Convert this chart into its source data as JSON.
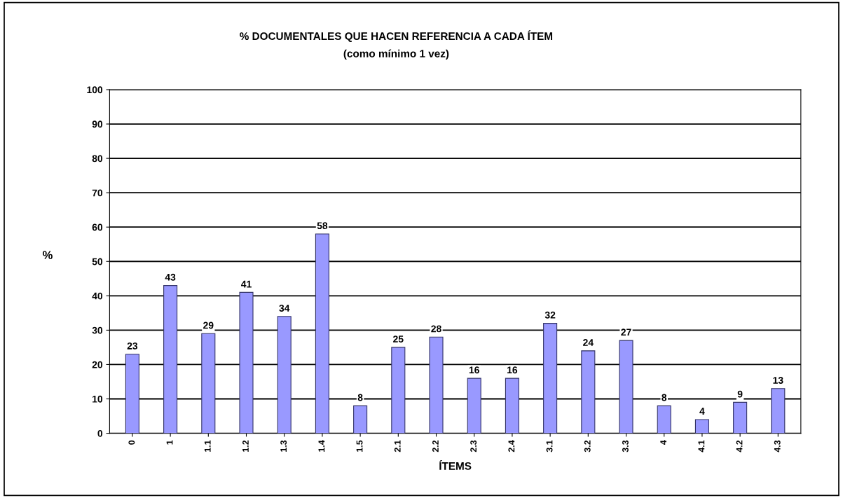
{
  "chart_data": {
    "type": "bar",
    "title": "% DOCUMENTALES QUE HACEN REFERENCIA A CADA ÍTEM",
    "subtitle": "(como mínimo 1 vez)",
    "xlabel": "ÍTEMS",
    "ylabel": "%",
    "categories": [
      "0",
      "1",
      "1.1",
      "1.2",
      "1.3",
      "1.4",
      "1.5",
      "2.1",
      "2.2",
      "2.3",
      "2.4",
      "3.1",
      "3.2",
      "3.3",
      "4",
      "4.1",
      "4.2",
      "4.3"
    ],
    "values": [
      23,
      43,
      29,
      41,
      34,
      58,
      8,
      25,
      28,
      16,
      16,
      32,
      24,
      27,
      8,
      4,
      9,
      13
    ],
    "color": "#9999ff",
    "ylim": [
      0,
      100
    ],
    "yticks": [
      0,
      10,
      20,
      30,
      40,
      50,
      60,
      70,
      80,
      90,
      100
    ],
    "grid": "y",
    "data_labels": true
  }
}
